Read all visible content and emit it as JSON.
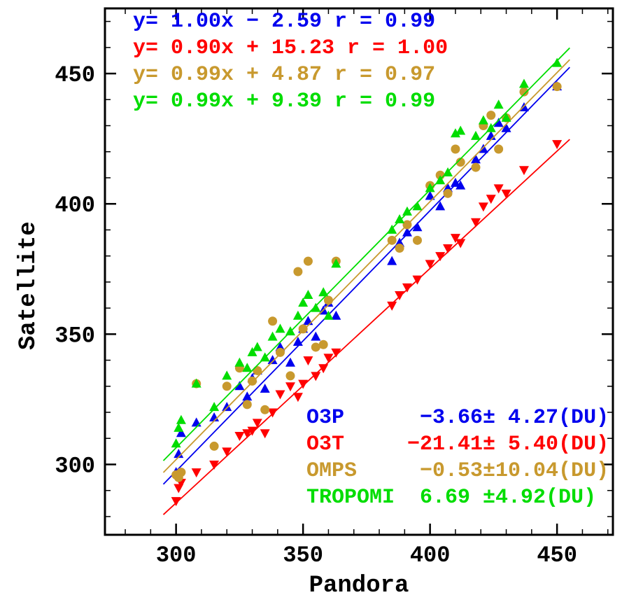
{
  "figure": {
    "background": "#ffffff",
    "frame_color": "#000000",
    "text_color": "#000000"
  },
  "chart_data": {
    "type": "scatter",
    "title": "",
    "xlabel": "Pandora",
    "ylabel": "Satellite",
    "xlim": [
      272,
      472
    ],
    "ylim": [
      273,
      475
    ],
    "xticks": [
      300,
      350,
      400,
      450
    ],
    "yticks": [
      300,
      350,
      400,
      450
    ],
    "minor_tick_step": 10,
    "grid": false,
    "fit_range": [
      295,
      455
    ],
    "annotations": {
      "equations_position": "top-left",
      "bias_position": "bottom-right"
    },
    "series": [
      {
        "name": "O3P",
        "marker": "triangle-up",
        "color": "#0000ee",
        "fit": {
          "slope": 1.0,
          "intercept": -2.59,
          "r": 0.99
        },
        "equation": "y= 1.00x − 2.59 r = 0.99",
        "bias": {
          "value": -3.66,
          "sigma": 4.27,
          "unit": "DU"
        },
        "bias_label": "O3P      −3.66± 4.27(DU)",
        "points": [
          [
            300,
            297
          ],
          [
            301,
            304
          ],
          [
            302,
            312
          ],
          [
            308,
            316
          ],
          [
            315,
            318
          ],
          [
            320,
            322
          ],
          [
            325,
            330
          ],
          [
            328,
            326
          ],
          [
            330,
            333
          ],
          [
            332,
            336
          ],
          [
            335,
            329
          ],
          [
            338,
            340
          ],
          [
            341,
            345
          ],
          [
            345,
            339
          ],
          [
            348,
            347
          ],
          [
            350,
            352
          ],
          [
            352,
            355
          ],
          [
            355,
            349
          ],
          [
            358,
            359
          ],
          [
            360,
            362
          ],
          [
            363,
            357
          ],
          [
            385,
            378
          ],
          [
            388,
            385
          ],
          [
            391,
            389
          ],
          [
            395,
            391
          ],
          [
            400,
            403
          ],
          [
            404,
            399
          ],
          [
            407,
            406
          ],
          [
            410,
            408
          ],
          [
            412,
            407
          ],
          [
            418,
            417
          ],
          [
            421,
            421
          ],
          [
            424,
            426
          ],
          [
            427,
            431
          ],
          [
            430,
            429
          ],
          [
            437,
            437
          ],
          [
            450,
            445
          ]
        ]
      },
      {
        "name": "O3T",
        "marker": "triangle-down",
        "color": "#ff0000",
        "fit": {
          "slope": 0.9,
          "intercept": 15.23,
          "r": 1.0
        },
        "equation": "y= 0.90x + 15.23 r = 1.00",
        "bias": {
          "value": -21.41,
          "sigma": 5.4,
          "unit": "DU"
        },
        "bias_label": "O3T     −21.41± 5.40(DU)",
        "points": [
          [
            300,
            286
          ],
          [
            301,
            291
          ],
          [
            302,
            293
          ],
          [
            308,
            297
          ],
          [
            315,
            300
          ],
          [
            320,
            305
          ],
          [
            325,
            311
          ],
          [
            328,
            312
          ],
          [
            330,
            313
          ],
          [
            332,
            316
          ],
          [
            335,
            312
          ],
          [
            338,
            320
          ],
          [
            341,
            327
          ],
          [
            345,
            330
          ],
          [
            348,
            326
          ],
          [
            350,
            331
          ],
          [
            352,
            340
          ],
          [
            355,
            334
          ],
          [
            358,
            337
          ],
          [
            360,
            341
          ],
          [
            363,
            343
          ],
          [
            385,
            361
          ],
          [
            388,
            365
          ],
          [
            391,
            368
          ],
          [
            395,
            371
          ],
          [
            400,
            377
          ],
          [
            404,
            380
          ],
          [
            407,
            383
          ],
          [
            410,
            387
          ],
          [
            412,
            385
          ],
          [
            418,
            393
          ],
          [
            421,
            399
          ],
          [
            424,
            402
          ],
          [
            427,
            406
          ],
          [
            430,
            404
          ],
          [
            437,
            413
          ],
          [
            450,
            423
          ]
        ]
      },
      {
        "name": "OMPS",
        "marker": "circle",
        "color": "#c8992e",
        "fit": {
          "slope": 0.99,
          "intercept": 4.87,
          "r": 0.97
        },
        "equation": "y= 0.99x + 4.87 r = 0.97",
        "bias": {
          "value": -0.53,
          "sigma": 10.04,
          "unit": "DU"
        },
        "bias_label": "OMPS     −0.53±10.04(DU)",
        "points": [
          [
            300,
            296
          ],
          [
            301,
            295
          ],
          [
            302,
            297
          ],
          [
            308,
            331
          ],
          [
            315,
            307
          ],
          [
            320,
            330
          ],
          [
            325,
            337
          ],
          [
            328,
            323
          ],
          [
            330,
            332
          ],
          [
            332,
            336
          ],
          [
            335,
            321
          ],
          [
            338,
            355
          ],
          [
            341,
            343
          ],
          [
            345,
            334
          ],
          [
            348,
            374
          ],
          [
            350,
            352
          ],
          [
            352,
            378
          ],
          [
            355,
            345
          ],
          [
            358,
            346
          ],
          [
            360,
            363
          ],
          [
            363,
            378
          ],
          [
            385,
            386
          ],
          [
            388,
            383
          ],
          [
            391,
            392
          ],
          [
            395,
            386
          ],
          [
            400,
            407
          ],
          [
            404,
            411
          ],
          [
            407,
            404
          ],
          [
            410,
            421
          ],
          [
            412,
            416
          ],
          [
            418,
            414
          ],
          [
            421,
            430
          ],
          [
            424,
            434
          ],
          [
            427,
            421
          ],
          [
            430,
            433
          ],
          [
            437,
            443
          ],
          [
            450,
            445
          ]
        ]
      },
      {
        "name": "TROPOMI",
        "marker": "triangle-up",
        "color": "#00dd00",
        "fit": {
          "slope": 0.99,
          "intercept": 9.39,
          "r": 0.99
        },
        "equation": "y= 0.99x + 9.39 r = 0.99",
        "bias": {
          "value": 6.69,
          "sigma": 4.92,
          "unit": "DU"
        },
        "bias_label": "TROPOMI  6.69 ±4.92(DU)",
        "points": [
          [
            300,
            308
          ],
          [
            301,
            314
          ],
          [
            302,
            317
          ],
          [
            308,
            331
          ],
          [
            315,
            322
          ],
          [
            320,
            334
          ],
          [
            325,
            339
          ],
          [
            328,
            337
          ],
          [
            330,
            343
          ],
          [
            332,
            345
          ],
          [
            335,
            341
          ],
          [
            338,
            349
          ],
          [
            341,
            352
          ],
          [
            345,
            351
          ],
          [
            348,
            357
          ],
          [
            350,
            362
          ],
          [
            352,
            365
          ],
          [
            355,
            360
          ],
          [
            358,
            366
          ],
          [
            360,
            357
          ],
          [
            363,
            377
          ],
          [
            385,
            390
          ],
          [
            388,
            394
          ],
          [
            391,
            397
          ],
          [
            395,
            399
          ],
          [
            400,
            406
          ],
          [
            404,
            409
          ],
          [
            407,
            412
          ],
          [
            410,
            427
          ],
          [
            412,
            428
          ],
          [
            418,
            426
          ],
          [
            421,
            432
          ],
          [
            424,
            429
          ],
          [
            427,
            438
          ],
          [
            430,
            433
          ],
          [
            437,
            446
          ],
          [
            450,
            454
          ]
        ]
      }
    ]
  }
}
